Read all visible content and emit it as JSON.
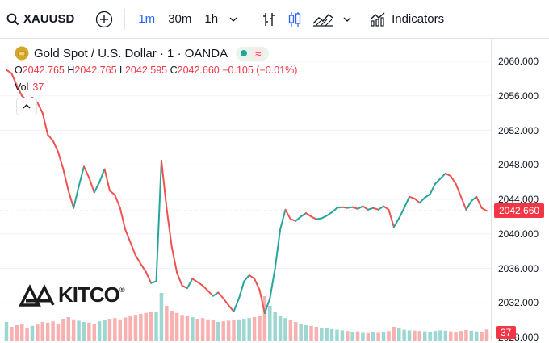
{
  "toolbar": {
    "symbol": "XAUUSD",
    "intervals": [
      "1m",
      "30m",
      "1h"
    ],
    "active_interval": "1m",
    "indicators_label": "Indicators"
  },
  "legend": {
    "title": "Gold Spot / U.S. Dollar · 1 · OANDA",
    "ohlc": {
      "o_label": "O",
      "o": "2042.765",
      "h_label": "H",
      "h": "2042.765",
      "l_label": "L",
      "l": "2042.595",
      "c_label": "C",
      "c": "2042.660",
      "change": "−0.105 (−0.01%)"
    },
    "vol_label": "Vol",
    "vol_value": "37"
  },
  "brand": {
    "name": "KITCO",
    "registered": "®"
  },
  "price_axis": {
    "ticks": [
      "2060.000",
      "2056.000",
      "2052.000",
      "2048.000",
      "2044.000",
      "2040.000",
      "2036.000",
      "2032.000",
      "2028.000"
    ],
    "last_price_label": "2042.660",
    "volume_label": "37"
  },
  "colors": {
    "up": "#26a69a",
    "down": "#ef5350",
    "accent": "#2962ff",
    "last_price": "#f23645"
  },
  "chart_data": {
    "type": "line",
    "title": "Gold Spot / U.S. Dollar · 1 · OANDA",
    "ylim": [
      2028,
      2062
    ],
    "series": [
      {
        "values": [
          2059.0,
          2058.6,
          2057.2,
          2056.0,
          2055.4,
          2055.8,
          2055.2,
          2054.0,
          2051.5,
          2050.8,
          2049.5,
          2047.5,
          2045.0,
          2043.0,
          2045.5,
          2047.8,
          2046.5,
          2044.8,
          2046.0,
          2047.5,
          2045.0,
          2044.5,
          2043.0,
          2040.5,
          2039.0,
          2037.5,
          2036.5,
          2035.6,
          2034.3,
          2034.5,
          2048.5,
          2043.0,
          2038.5,
          2035.5,
          2034.0,
          2033.7,
          2034.8,
          2034.4,
          2034.0,
          2033.4,
          2032.8,
          2033.2,
          2032.5,
          2031.7,
          2031.0,
          2032.5,
          2034.5,
          2035.2,
          2034.8,
          2033.5,
          2030.8,
          2032.5,
          2036.0,
          2040.5,
          2042.8,
          2041.7,
          2041.5,
          2042.0,
          2042.4,
          2042.0,
          2041.7,
          2041.8,
          2042.1,
          2042.5,
          2043.0,
          2043.1,
          2043.0,
          2043.1,
          2042.9,
          2043.2,
          2042.8,
          2043.0,
          2042.8,
          2043.2,
          2042.8,
          2040.8,
          2041.8,
          2043.0,
          2044.3,
          2044.1,
          2043.6,
          2044.2,
          2044.6,
          2045.8,
          2046.4,
          2047.0,
          2046.7,
          2045.8,
          2044.3,
          2042.8,
          2043.8,
          2044.3,
          2043.0,
          2042.66
        ],
        "volume": [
          60,
          45,
          50,
          55,
          40,
          48,
          52,
          60,
          58,
          62,
          55,
          70,
          75,
          68,
          64,
          60,
          58,
          55,
          62,
          66,
          70,
          72,
          68,
          74,
          80,
          82,
          85,
          88,
          90,
          92,
          150,
          110,
          95,
          88,
          82,
          78,
          75,
          70,
          72,
          68,
          65,
          60,
          62,
          64,
          66,
          68,
          70,
          72,
          75,
          78,
          140,
          110,
          90,
          80,
          72,
          65,
          60,
          55,
          50,
          48,
          45,
          42,
          40,
          38,
          36,
          34,
          32,
          30,
          31,
          29,
          28,
          30,
          29,
          30,
          32,
          45,
          40,
          36,
          34,
          33,
          32,
          31,
          30,
          32,
          34,
          33,
          31,
          30,
          32,
          35,
          33,
          31,
          30,
          37
        ]
      }
    ]
  }
}
